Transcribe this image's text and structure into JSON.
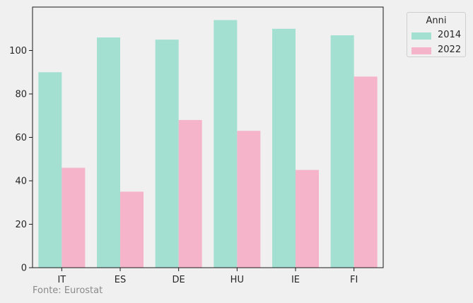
{
  "chart_data": {
    "type": "bar",
    "categories": [
      "IT",
      "ES",
      "DE",
      "HU",
      "IE",
      "FI"
    ],
    "series": [
      {
        "name": "2014",
        "values": [
          90,
          106,
          105,
          114,
          110,
          107
        ],
        "color": "#a3e0d2"
      },
      {
        "name": "2022",
        "values": [
          46,
          35,
          68,
          63,
          45,
          88
        ],
        "color": "#f6b4ca"
      }
    ],
    "ylim": [
      0,
      120
    ],
    "yticks": [
      0,
      20,
      40,
      60,
      80,
      100
    ],
    "grid": false,
    "legend_title": "Anni",
    "legend_position": "outside-top-right"
  },
  "source_note": "Fonte: Eurostat"
}
